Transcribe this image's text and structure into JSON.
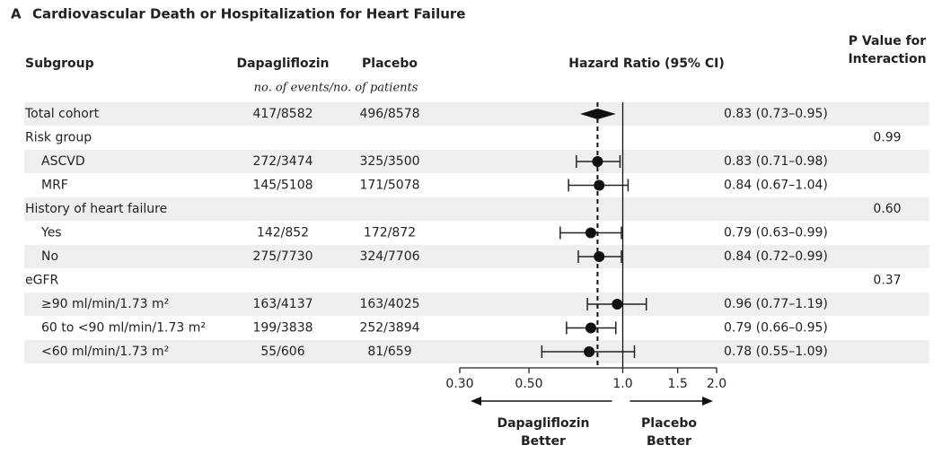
{
  "chart_data": {
    "type": "forest",
    "panel": "A",
    "title": "Cardiovascular Death or Hospitalization for Heart Failure",
    "columns": {
      "subgroup": "Subgroup",
      "dapagliflozin": "Dapagliflozin",
      "placebo": "Placebo",
      "counts_note": "no. of events/no. of patients",
      "hazard_ratio": "Hazard Ratio (95% CI)",
      "p_value": "P Value for Interaction"
    },
    "xscale": "log",
    "xlim": [
      0.3,
      2.0
    ],
    "xticks": [
      {
        "value": 0.3,
        "label": "0.30"
      },
      {
        "value": 0.5,
        "label": "0.50"
      },
      {
        "value": 1,
        "label": "1.0"
      },
      {
        "value": 1.5,
        "label": "1.5"
      },
      {
        "value": 2,
        "label": "2.0"
      }
    ],
    "reference_value": 1,
    "arrow_labels": {
      "left": "Dapagliflozin Better",
      "right": "Placebo Better"
    },
    "rows": [
      {
        "label": "Total cohort",
        "dapagliflozin": "417/8582",
        "placebo": "496/8578",
        "hr": 0.83,
        "ci": [
          0.73,
          0.95
        ],
        "hr_label": "0.83 (0.73–0.95)",
        "marker": "diamond"
      },
      {
        "label": "Risk group",
        "p_value": "0.99",
        "subgroups": [
          {
            "label": "ASCVD",
            "dapagliflozin": "272/3474",
            "placebo": "325/3500",
            "hr": 0.83,
            "ci": [
              0.71,
              0.98
            ],
            "hr_label": "0.83 (0.71–0.98)"
          },
          {
            "label": "MRF",
            "dapagliflozin": "145/5108",
            "placebo": "171/5078",
            "hr": 0.84,
            "ci": [
              0.67,
              1.04
            ],
            "hr_label": "0.84 (0.67–1.04)"
          }
        ]
      },
      {
        "label": "History of heart failure",
        "p_value": "0.60",
        "subgroups": [
          {
            "label": "Yes",
            "dapagliflozin": "142/852",
            "placebo": "172/872",
            "hr": 0.79,
            "ci": [
              0.63,
              0.99
            ],
            "hr_label": "0.79 (0.63–0.99)"
          },
          {
            "label": "No",
            "dapagliflozin": "275/7730",
            "placebo": "324/7706",
            "hr": 0.84,
            "ci": [
              0.72,
              0.99
            ],
            "hr_label": "0.84 (0.72–0.99)"
          }
        ]
      },
      {
        "label": "eGFR",
        "p_value": "0.37",
        "subgroups": [
          {
            "label": "≥90 ml/min/1.73 m²",
            "dapagliflozin": "163/4137",
            "placebo": "163/4025",
            "hr": 0.96,
            "ci": [
              0.77,
              1.19
            ],
            "hr_label": "0.96 (0.77–1.19)"
          },
          {
            "label": "60 to <90 ml/min/1.73 m²",
            "dapagliflozin": "199/3838",
            "placebo": "252/3894",
            "hr": 0.79,
            "ci": [
              0.66,
              0.95
            ],
            "hr_label": "0.79 (0.66–0.95)"
          },
          {
            "label": "<60 ml/min/1.73 m²",
            "dapagliflozin": "55/606",
            "placebo": "81/659",
            "hr": 0.78,
            "ci": [
              0.55,
              1.09
            ],
            "hr_label": "0.78 (0.55–1.09)"
          }
        ]
      }
    ]
  }
}
